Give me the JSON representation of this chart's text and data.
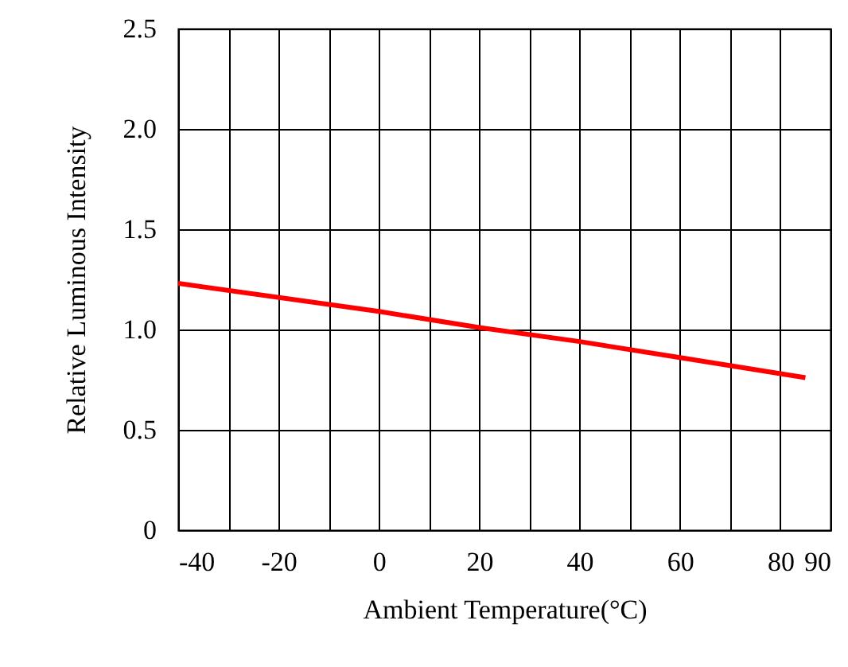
{
  "chart_data": {
    "type": "line",
    "xlabel": "Ambient Temperature(°C)",
    "ylabel": "Relative Luminous Intensity",
    "x": [
      -40,
      0,
      20,
      40,
      60,
      85
    ],
    "series": [
      {
        "color": "#ff0000",
        "values": [
          1.23,
          1.09,
          1.01,
          0.94,
          0.86,
          0.76
        ]
      }
    ],
    "xlim": [
      -40,
      90
    ],
    "xticks": [
      -40,
      {
        "value": -30,
        "label": null
      },
      -20,
      {
        "value": -10,
        "label": null
      },
      0,
      {
        "value": 10,
        "label": null
      },
      20,
      {
        "value": 30,
        "label": null
      },
      40,
      {
        "value": 50,
        "label": null
      },
      60,
      {
        "value": 70,
        "label": null
      },
      80,
      90
    ],
    "ylim": [
      0,
      2.5
    ],
    "yticks": [
      0,
      {
        "value": 0.5,
        "label": "0.5"
      },
      {
        "value": 1,
        "label": "1.0"
      },
      {
        "value": 1.5,
        "label": "1.5"
      },
      {
        "value": 2,
        "label": "2.0"
      },
      2.5
    ],
    "grid": true,
    "marker": "none",
    "line_style": "solid"
  }
}
